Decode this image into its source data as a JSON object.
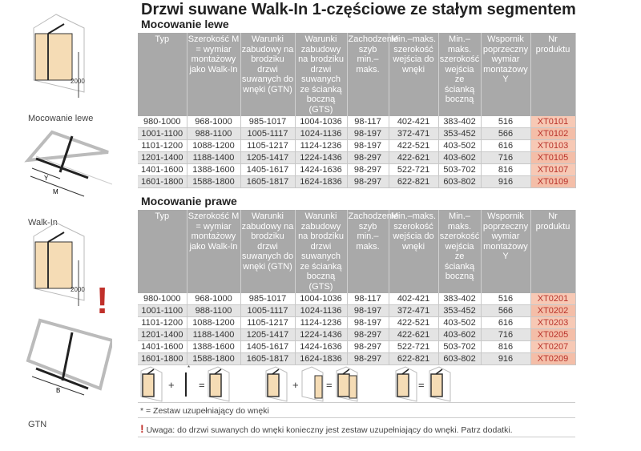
{
  "title": "Drzwi suwane Walk-In 1-częściowe ze stałym segmentem",
  "headers": [
    "Typ",
    "Szerokość M = wymiar montażowy jako Walk-In",
    "Warunki zabudowy na brodziku drzwi suwanych do wnęki (GTN)",
    "Warunki zabudowy na brodziku drzwi suwanych ze ścianką boczną (GTS)",
    "Zachodzenie szyb min.–maks.",
    "Min.–maks. szerokość wejścia do wnęki",
    "Min.–maks. szerokość wejścia ze ścianką boczną",
    "Wspornik poprzeczny wymiar montażowy Y",
    "Nr produktu"
  ],
  "sections": [
    {
      "title": "Mocowanie lewe",
      "rows": [
        [
          "980-1000",
          "968-1000",
          "985-1017",
          "1004-1036",
          "98-117",
          "402-421",
          "383-402",
          "516",
          "XT0101"
        ],
        [
          "1001-1100",
          "988-1100",
          "1005-1117",
          "1024-1136",
          "98-197",
          "372-471",
          "353-452",
          "566",
          "XT0102"
        ],
        [
          "1101-1200",
          "1088-1200",
          "1105-1217",
          "1124-1236",
          "98-197",
          "422-521",
          "403-502",
          "616",
          "XT0103"
        ],
        [
          "1201-1400",
          "1188-1400",
          "1205-1417",
          "1224-1436",
          "98-297",
          "422-621",
          "403-602",
          "716",
          "XT0105"
        ],
        [
          "1401-1600",
          "1388-1600",
          "1405-1617",
          "1424-1636",
          "98-297",
          "522-721",
          "503-702",
          "816",
          "XT0107"
        ],
        [
          "1601-1800",
          "1588-1800",
          "1605-1817",
          "1624-1836",
          "98-297",
          "622-821",
          "603-802",
          "916",
          "XT0109"
        ]
      ]
    },
    {
      "title": "Mocowanie prawe",
      "rows": [
        [
          "980-1000",
          "968-1000",
          "985-1017",
          "1004-1036",
          "98-117",
          "402-421",
          "383-402",
          "516",
          "XT0201"
        ],
        [
          "1001-1100",
          "988-1100",
          "1005-1117",
          "1024-1136",
          "98-197",
          "372-471",
          "353-452",
          "566",
          "XT0202"
        ],
        [
          "1101-1200",
          "1088-1200",
          "1105-1217",
          "1124-1236",
          "98-197",
          "422-521",
          "403-502",
          "616",
          "XT0203"
        ],
        [
          "1201-1400",
          "1188-1400",
          "1205-1417",
          "1224-1436",
          "98-297",
          "422-621",
          "403-602",
          "716",
          "XT0205"
        ],
        [
          "1401-1600",
          "1388-1600",
          "1405-1617",
          "1424-1636",
          "98-297",
          "522-721",
          "503-702",
          "816",
          "XT0207"
        ],
        [
          "1601-1800",
          "1588-1800",
          "1605-1817",
          "1624-1836",
          "98-297",
          "622-821",
          "603-802",
          "916",
          "XT0209"
        ]
      ]
    }
  ],
  "diagrams": {
    "label1": "Mocowanie lewe",
    "label2": "Walk-In",
    "label3": "GTN",
    "dim_height": "2000",
    "dim_y": "Y",
    "dim_m": "M",
    "dim_b": "B"
  },
  "icons": {
    "plus": "+",
    "equals": "=",
    "asterisk": "*"
  },
  "footnote": "* = Zestaw uzupełniający do wnęki",
  "warning": {
    "mark": "!",
    "text": "Uwaga: do drzwi suwanych do wnęki konieczny jest zestaw uzupełniający do wnęki. Patrz dodatki."
  },
  "colors": {
    "header": "#a9a9a9",
    "product": "#f7c9b5",
    "product_text": "#b8322a",
    "warning": "#c0302a"
  }
}
